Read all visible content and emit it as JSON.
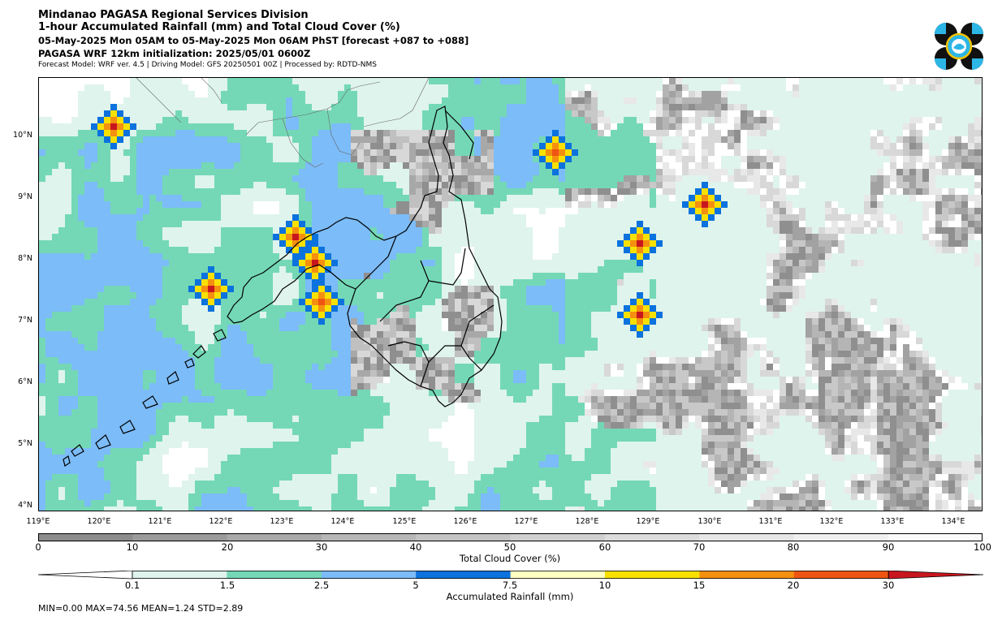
{
  "header": {
    "line1": "Mindanao PAGASA Regional Services Division",
    "line2": "1-hour Accumulated Rainfall (mm) and Total Cloud Cover (%)",
    "line3": "05-May-2025 Mon 05AM to 05-May-2025 Mon 06AM PhST [forecast +087 to +088]",
    "line4": "PAGASA WRF 12km initialization: 2025/05/01 0600Z",
    "line5": "Forecast Model: WRF ver. 4.5 | Driving Model: GFS 20250501 00Z | Processed by: RDTD-NMS"
  },
  "map": {
    "lat_labels": [
      "10°N",
      "9°N",
      "8°N",
      "7°N",
      "6°N",
      "5°N",
      "4°N"
    ],
    "lon_labels": [
      "119°E",
      "120°E",
      "121°E",
      "122°E",
      "123°E",
      "124°E",
      "125°E",
      "126°E",
      "127°E",
      "128°E",
      "129°E",
      "130°E",
      "131°E",
      "132°E",
      "133°E",
      "134°E"
    ]
  },
  "cloud_colorbar": {
    "title": "Total Cloud Cover (%)",
    "ticks": [
      "0",
      "10",
      "20",
      "30",
      "40",
      "50",
      "60",
      "70",
      "80",
      "90",
      "100"
    ],
    "colors": [
      "#8c8c8c",
      "#9b9b9b",
      "#a9a9a9",
      "#b7b7b7",
      "#c4c4c4",
      "#d0d0d0",
      "#dcdcdc",
      "#e6e6e6",
      "#f0f0f0",
      "#fafafa"
    ]
  },
  "rain_colorbar": {
    "title": "Accumulated Rainfall (mm)",
    "ticks": [
      "0.1",
      "1.5",
      "2.5",
      "5",
      "7.5",
      "10",
      "15",
      "20",
      "30"
    ],
    "colors": [
      "#ffffff",
      "#dff4ec",
      "#74d8b6",
      "#7cbcf8",
      "#0b72de",
      "#fefec2",
      "#f8e100",
      "#f58f0f",
      "#ef5512",
      "#c8161e"
    ]
  },
  "stats": "MIN=0.00   MAX=74.56   MEAN=1.24   STD=2.89",
  "chart_data": {
    "type": "heatmap",
    "description_fields": "map of rainfall and cloud cover",
    "lon_range": [
      119,
      134.5
    ],
    "lat_range": [
      3.9,
      11
    ],
    "rain_hotspots_mm": [
      {
        "lon": 120.2,
        "lat": 10.3,
        "max_mm": 30
      },
      {
        "lon": 121.8,
        "lat": 7.6,
        "max_mm": 30
      },
      {
        "lon": 123.2,
        "lat": 8.5,
        "max_mm": 30
      },
      {
        "lon": 123.5,
        "lat": 8.0,
        "max_mm": 30
      },
      {
        "lon": 123.6,
        "lat": 7.4,
        "max_mm": 20
      },
      {
        "lon": 127.4,
        "lat": 9.8,
        "max_mm": 20
      },
      {
        "lon": 128.8,
        "lat": 8.3,
        "max_mm": 30
      },
      {
        "lon": 128.8,
        "lat": 7.2,
        "max_mm": 30
      },
      {
        "lon": 129.9,
        "lat": 9.0,
        "max_mm": 30
      }
    ],
    "stats": {
      "min": 0.0,
      "max": 74.56,
      "mean": 1.24,
      "std": 2.89
    }
  }
}
